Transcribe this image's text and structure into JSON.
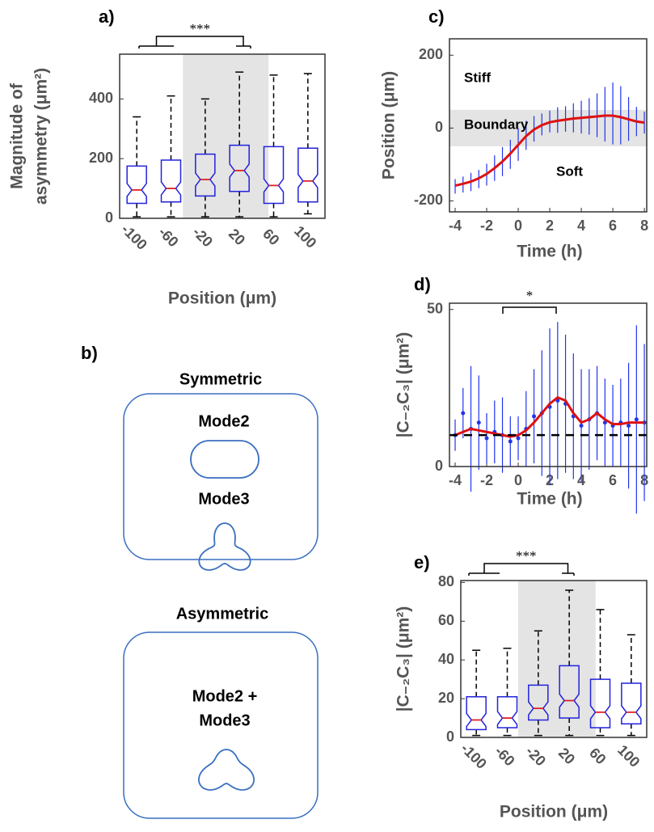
{
  "chart_data": [
    {
      "type": "box",
      "panel": "a)",
      "ylabel": [
        "Magnitude of",
        "asymmetry (μm²)"
      ],
      "xlabel": "Position (μm)",
      "annotation": "***",
      "categories": [
        "-100",
        "-60",
        "-20",
        "20",
        "60",
        "100"
      ],
      "boxes": [
        {
          "min": 5,
          "q1": 50,
          "median": 95,
          "q3": 175,
          "max": 340
        },
        {
          "min": 5,
          "q1": 55,
          "median": 100,
          "q3": 195,
          "max": 410
        },
        {
          "min": 5,
          "q1": 75,
          "median": 130,
          "q3": 215,
          "max": 400
        },
        {
          "min": 5,
          "q1": 90,
          "median": 160,
          "q3": 245,
          "max": 490
        },
        {
          "min": 5,
          "q1": 50,
          "median": 110,
          "q3": 240,
          "max": 480
        },
        {
          "min": 15,
          "q1": 55,
          "median": 125,
          "q3": 235,
          "max": 485
        }
      ],
      "ylim": [
        0,
        550
      ],
      "yticks": [
        0,
        200,
        400
      ],
      "color": "#2222dd",
      "median_color": "#dd2222"
    },
    {
      "type": "line",
      "panel": "c)",
      "ylabel": "Position (μm)",
      "xlabel": "Time (h)",
      "annotations": [
        "Stiff",
        "Boundary",
        "Soft"
      ],
      "x": [
        -4,
        -3.5,
        -3,
        -2.5,
        -2,
        -1.5,
        -1,
        -0.5,
        0,
        0.5,
        1,
        1.5,
        2,
        2.5,
        3,
        3.5,
        4,
        4.5,
        5,
        5.5,
        6,
        6.5,
        7,
        7.5,
        8
      ],
      "series": [
        {
          "color": "#2233ee",
          "values": [
            -160,
            -155,
            -148,
            -140,
            -128,
            -110,
            -92,
            -72,
            -45,
            -20,
            -2,
            10,
            18,
            22,
            25,
            28,
            30,
            32,
            35,
            38,
            40,
            35,
            25,
            18,
            15
          ],
          "errors": [
            20,
            22,
            25,
            25,
            30,
            35,
            40,
            40,
            45,
            40,
            35,
            30,
            30,
            35,
            35,
            40,
            45,
            50,
            60,
            75,
            85,
            80,
            60,
            40,
            30
          ]
        },
        {
          "color": "#dd1111",
          "values": [
            -158,
            -153,
            -147,
            -138,
            -126,
            -110,
            -92,
            -70,
            -46,
            -22,
            -4,
            8,
            16,
            20,
            23,
            26,
            28,
            30,
            32,
            34,
            34,
            30,
            24,
            18,
            15
          ]
        }
      ],
      "band": [
        -50,
        50
      ],
      "xlim": [
        -4.36,
        8.15
      ],
      "ylim": [
        -230,
        245
      ],
      "xticks": [
        -4,
        -2,
        0,
        2,
        4,
        6,
        8
      ],
      "yticks": [
        -200,
        0,
        200
      ]
    },
    {
      "type": "line",
      "panel": "d)",
      "ylabel": "|C₋₂C₃| (μm²)",
      "xlabel": "Time (h)",
      "annotation": "*",
      "x": [
        -4,
        -3.5,
        -3,
        -2.5,
        -2,
        -1.5,
        -1,
        -0.5,
        0,
        0.5,
        1,
        1.5,
        2,
        2.5,
        3,
        3.5,
        4,
        4.5,
        5,
        5.5,
        6,
        6.5,
        7,
        7.5,
        8
      ],
      "series": [
        {
          "color": "#2233ee",
          "markers": true,
          "values": [
            10,
            17,
            12,
            14,
            9,
            11,
            10,
            8,
            9,
            12,
            16,
            17,
            19,
            21,
            20,
            16,
            13,
            15,
            17,
            14,
            13,
            14,
            13,
            15,
            14
          ],
          "errors": [
            5,
            8,
            20,
            15,
            8,
            10,
            12,
            8,
            7,
            12,
            15,
            20,
            25,
            25,
            22,
            20,
            18,
            16,
            15,
            14,
            13,
            14,
            20,
            30,
            25
          ]
        },
        {
          "color": "#dd1111",
          "values": [
            10,
            11,
            12,
            11.5,
            11,
            10.5,
            10,
            9.5,
            10,
            11.5,
            14,
            17,
            20,
            22,
            21,
            17,
            14,
            15,
            17,
            15,
            13.5,
            13.5,
            14,
            14,
            14
          ]
        }
      ],
      "reference": 10,
      "xlim": [
        -4.36,
        8.15
      ],
      "ylim": [
        0,
        52
      ],
      "xticks": [
        -4,
        -2,
        0,
        2,
        4,
        6,
        8
      ],
      "yticks": [
        0,
        50
      ]
    },
    {
      "type": "box",
      "panel": "e)",
      "ylabel": "|C₋₂C₃| (μm²)",
      "xlabel": "Position (μm)",
      "annotation": "***",
      "categories": [
        "-100",
        "-60",
        "-20",
        "20",
        "60",
        "100"
      ],
      "boxes": [
        {
          "min": 1,
          "q1": 4,
          "median": 9,
          "q3": 21,
          "max": 45
        },
        {
          "min": 1,
          "q1": 5,
          "median": 10,
          "q3": 21,
          "max": 46
        },
        {
          "min": 1,
          "q1": 9,
          "median": 15,
          "q3": 27,
          "max": 55
        },
        {
          "min": 1,
          "q1": 10,
          "median": 19,
          "q3": 37,
          "max": 76
        },
        {
          "min": 1,
          "q1": 5,
          "median": 13,
          "q3": 30,
          "max": 66
        },
        {
          "min": 1,
          "q1": 7,
          "median": 13,
          "q3": 28,
          "max": 53
        }
      ],
      "ylim": [
        0,
        81
      ],
      "yticks": [
        0,
        20,
        40,
        60,
        80
      ],
      "color": "#2222dd",
      "median_color": "#dd2222"
    }
  ],
  "diagram": {
    "panel": "b)",
    "symmetric": {
      "title": "Symmetric",
      "modes": [
        "Mode2",
        "Mode3"
      ]
    },
    "asymmetric": {
      "title": "Asymmetric",
      "label": [
        "Mode2 +",
        "Mode3"
      ]
    }
  }
}
